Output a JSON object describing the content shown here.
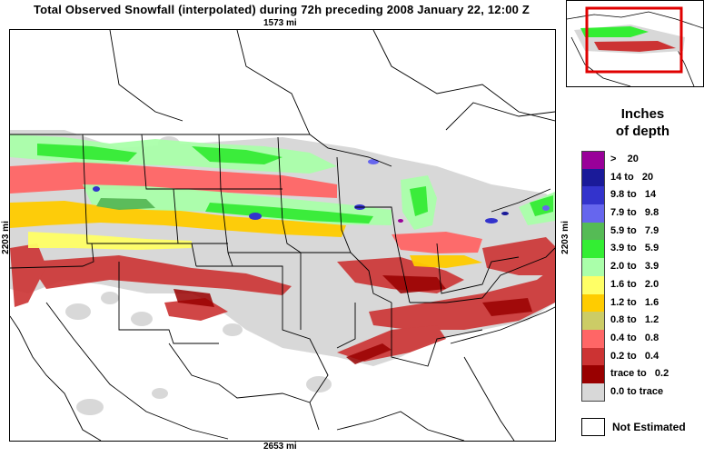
{
  "title": "Total Observed Snowfall (interpolated) during 72h preceding 2008 January 22, 12:00 Z",
  "dimensions": {
    "width": "1573 mi",
    "bottom": "2653 mi",
    "height_left": "2203 mi",
    "height_right": "2203 mi"
  },
  "legend": {
    "title_line1": "Inches",
    "title_line2": "of depth",
    "items": [
      {
        "label": ">    20",
        "color": "#990099"
      },
      {
        "label": "14 to   20",
        "color": "#1a1a99"
      },
      {
        "label": "9.8 to   14",
        "color": "#3333cc"
      },
      {
        "label": "7.9 to   9.8",
        "color": "#6666ee"
      },
      {
        "label": "5.9 to   7.9",
        "color": "#55bb55"
      },
      {
        "label": "3.9 to   5.9",
        "color": "#33ee33"
      },
      {
        "label": "2.0 to   3.9",
        "color": "#aaffaa"
      },
      {
        "label": "1.6 to   2.0",
        "color": "#ffff66"
      },
      {
        "label": "1.2 to   1.6",
        "color": "#ffcc00"
      },
      {
        "label": "0.8 to   1.2",
        "color": "#cccc66"
      },
      {
        "label": "0.4 to   0.8",
        "color": "#ff6666"
      },
      {
        "label": "0.2 to   0.4",
        "color": "#cc3333"
      },
      {
        "label": "trace to   0.2",
        "color": "#990000"
      },
      {
        "label": "0.0 to trace",
        "color": "#d8d8d8"
      }
    ],
    "not_estimated": "Not Estimated"
  }
}
